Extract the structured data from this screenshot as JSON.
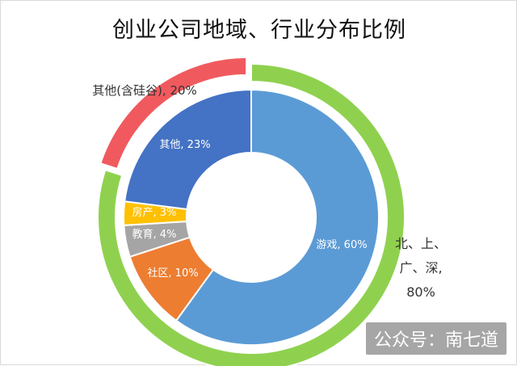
{
  "title": "创业公司地域、行业分布比例",
  "watermark": "公众号：南七道",
  "colors": {
    "background": "#ffffff",
    "outer_region_bsgs": "#8fd14f",
    "outer_region_other": "#f05a5e",
    "inner_games": "#5b9bd5",
    "inner_social": "#ed7d31",
    "inner_education": "#a5a5a5",
    "inner_realestate": "#ffc000",
    "inner_other": "#4472c4"
  },
  "chart_data": [
    {
      "type": "pie",
      "variant": "doughnut",
      "ring": "outer",
      "series": [
        {
          "name": "北、上、广、深",
          "value": 80,
          "label": "北、上、广、深, 80%",
          "color": "#8fd14f"
        },
        {
          "name": "其他(含硅谷)",
          "value": 20,
          "label": "其他(含硅谷), 20%",
          "color": "#f05a5e",
          "exploded": true
        }
      ]
    },
    {
      "type": "pie",
      "variant": "doughnut",
      "ring": "inner",
      "series": [
        {
          "name": "游戏",
          "value": 60,
          "label": "游戏, 60%",
          "color": "#5b9bd5"
        },
        {
          "name": "社区",
          "value": 10,
          "label": "社区, 10%",
          "color": "#ed7d31"
        },
        {
          "name": "教育",
          "value": 4,
          "label": "教育, 4%",
          "color": "#a5a5a5"
        },
        {
          "name": "房产",
          "value": 3,
          "label": "房产, 3%",
          "color": "#ffc000"
        },
        {
          "name": "其他",
          "value": 23,
          "label": "其他, 23%",
          "color": "#4472c4"
        }
      ]
    }
  ]
}
